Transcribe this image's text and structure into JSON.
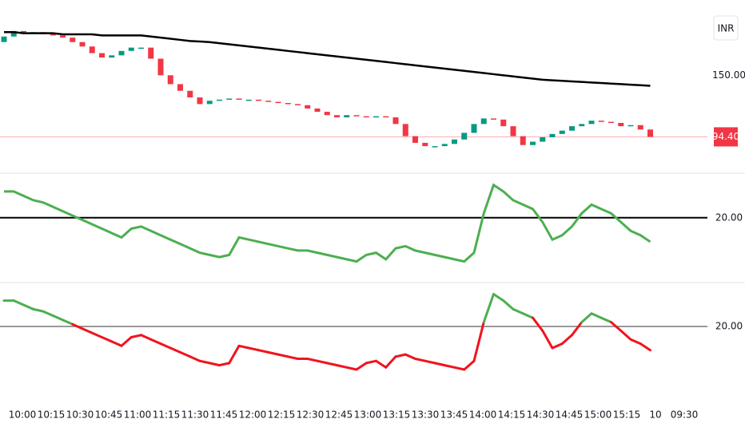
{
  "chart_data": [
    {
      "type": "candlestick",
      "currency": "INR",
      "ylim": [
        63,
        218
      ],
      "yticks": [
        {
          "value": 150,
          "label": "150.00"
        }
      ],
      "last_price": {
        "value": 94.4,
        "label": "94.40"
      },
      "up_color": "#089981",
      "down_color": "#f23645",
      "x_labels": [
        "10:00",
        "10:15",
        "10:30",
        "10:45",
        "11:00",
        "11:15",
        "11:30",
        "11:45",
        "12:00",
        "12:15",
        "12:30",
        "12:45",
        "13:00",
        "13:15",
        "13:30",
        "13:45",
        "14:00",
        "14:15",
        "14:30",
        "14:45",
        "15:00",
        "15:15",
        "10",
        "09:30"
      ],
      "open": [
        180,
        185,
        190,
        189,
        189,
        187,
        186,
        184,
        180,
        176,
        170,
        166,
        168,
        172,
        175,
        175,
        165,
        150,
        142,
        136,
        130,
        124,
        127,
        128,
        129,
        128,
        128,
        127,
        126,
        125,
        124,
        123,
        120,
        117,
        114,
        112,
        114,
        113,
        112,
        113,
        112,
        106,
        95,
        89,
        86,
        86,
        88,
        92,
        98,
        106,
        111,
        110,
        104,
        95,
        87,
        90,
        94,
        97,
        100,
        104,
        106,
        109,
        108,
        107,
        104,
        105,
        101
      ],
      "close": [
        185,
        190,
        189,
        189,
        187,
        186,
        184,
        180,
        176,
        170,
        166,
        168,
        172,
        175,
        175,
        165,
        150,
        142,
        136,
        130,
        124,
        127,
        128,
        129,
        128,
        128,
        127,
        126,
        125,
        124,
        123,
        120,
        117,
        114,
        112,
        114,
        113,
        112,
        113,
        112,
        106,
        95,
        89,
        86,
        86,
        88,
        92,
        98,
        106,
        111,
        110,
        104,
        95,
        87,
        90,
        94,
        97,
        100,
        104,
        106,
        109,
        108,
        107,
        104,
        105,
        101,
        94.4
      ],
      "ma": {
        "color": "#000000",
        "values": [
          189,
          189,
          188,
          188,
          188,
          188,
          187,
          187,
          187,
          187,
          186,
          186,
          186,
          186,
          186,
          185,
          184,
          183,
          182,
          181,
          180.5,
          180,
          179,
          178,
          177,
          176,
          175,
          174,
          173,
          172,
          171,
          170,
          169,
          168,
          167,
          166,
          165,
          164,
          163,
          162,
          161,
          160,
          159,
          158,
          157,
          156,
          155,
          154,
          153,
          152,
          151,
          150,
          149,
          148,
          147,
          146,
          145.5,
          145,
          144.5,
          144,
          143.5,
          143,
          142.5,
          142,
          141.5,
          141,
          140.5
        ]
      }
    },
    {
      "type": "line",
      "ylim": [
        -10,
        40
      ],
      "yticks": [
        {
          "value": 20,
          "label": "20.00"
        }
      ],
      "level_color": "#000000",
      "color": "#4caf50",
      "values": [
        32,
        32,
        30,
        28,
        27,
        25,
        23,
        21,
        19,
        17,
        15,
        13,
        11,
        15,
        16,
        14,
        12,
        10,
        8,
        6,
        4,
        3,
        2,
        3,
        11,
        10,
        9,
        8,
        7,
        6,
        5,
        5,
        4,
        3,
        2,
        1,
        0,
        3,
        4,
        1,
        6,
        7,
        5,
        4,
        3,
        2,
        1,
        0,
        4,
        22,
        35,
        32,
        28,
        26,
        24,
        18,
        10,
        12,
        16,
        22,
        26,
        24,
        22,
        18,
        14,
        12,
        9
      ]
    },
    {
      "type": "threshold-line",
      "ylim": [
        -10,
        40
      ],
      "yticks": [
        {
          "value": 20,
          "label": "20.00"
        }
      ],
      "level_color": "#999999",
      "color_above": "#4caf50",
      "color_below": "#f0141e",
      "values": [
        32,
        32,
        30,
        28,
        27,
        25,
        23,
        21,
        19,
        17,
        15,
        13,
        11,
        15,
        16,
        14,
        12,
        10,
        8,
        6,
        4,
        3,
        2,
        3,
        11,
        10,
        9,
        8,
        7,
        6,
        5,
        5,
        4,
        3,
        2,
        1,
        0,
        3,
        4,
        1,
        6,
        7,
        5,
        4,
        3,
        2,
        1,
        0,
        4,
        22,
        35,
        32,
        28,
        26,
        24,
        18,
        10,
        12,
        16,
        22,
        26,
        24,
        22,
        18,
        14,
        12,
        9
      ]
    }
  ]
}
